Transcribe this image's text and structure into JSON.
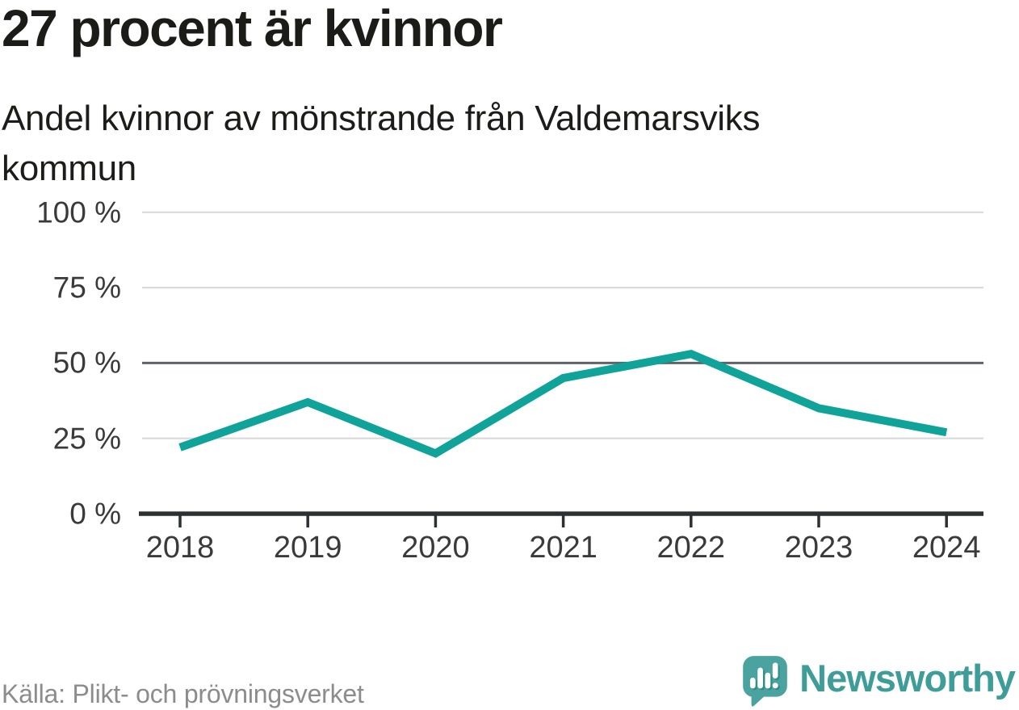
{
  "header": {
    "title": "27 procent är kvinnor",
    "subtitle": "Andel kvinnor av mönstrande från Valdemarsviks kommun"
  },
  "chart_data": {
    "type": "line",
    "title": "27 procent är kvinnor",
    "subtitle": "Andel kvinnor av mönstrande från Valdemarsviks kommun",
    "categories": [
      "2018",
      "2019",
      "2020",
      "2021",
      "2022",
      "2023",
      "2024"
    ],
    "series": [
      {
        "name": "Andel kvinnor av mönstrande",
        "values": [
          22,
          37,
          20,
          45,
          53,
          35,
          27
        ]
      }
    ],
    "unit": "%",
    "xlabel": "",
    "ylabel": "",
    "ylim": [
      0,
      100
    ],
    "y_ticks": [
      100,
      75,
      50,
      25,
      0
    ],
    "y_tick_labels": [
      "100 %",
      "75 %",
      "50 %",
      "25 %",
      "0 %"
    ],
    "grid": true,
    "emphasized_gridline": 50,
    "legend_position": "none",
    "line_color": "#10a39a"
  },
  "footer": {
    "source": "Källa: Plikt- och prövningsverket",
    "brand": "Newsworthy"
  },
  "colors": {
    "text_primary": "#1b1b19",
    "axis_label": "#3a3a3a",
    "grid_light": "#dadada",
    "grid_emphasis": "#5f6368",
    "axis": "#2e2f31",
    "line": "#10a39a",
    "source_text": "#8c8c8c",
    "brand_teal": "#3f9d99",
    "brand_icon": "#4aa39e",
    "brand_icon_shadow": "#2f8d89"
  }
}
